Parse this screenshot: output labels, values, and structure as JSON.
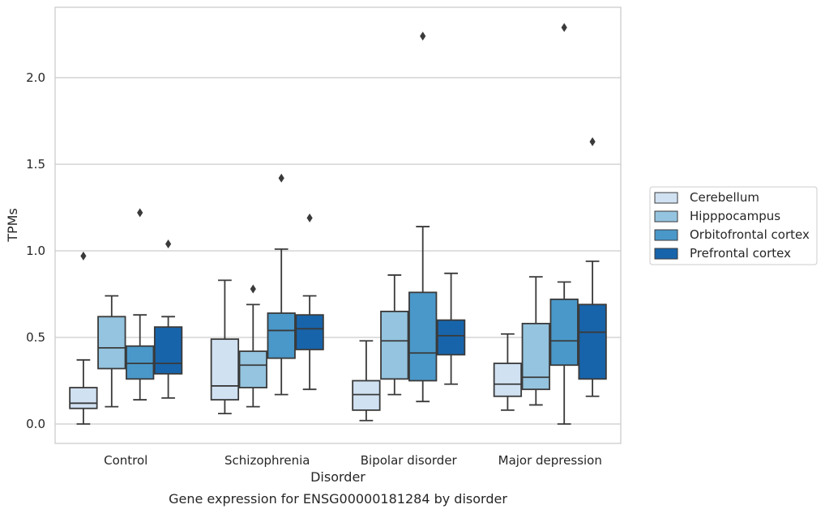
{
  "chart_data": {
    "type": "boxplot",
    "title": "",
    "caption": "Gene expression for ENSG00000181284 by disorder",
    "xlabel": "Disorder",
    "ylabel": "TPMs",
    "ylim": [
      -0.11,
      2.42
    ],
    "yticks": [
      "0.0",
      "0.5",
      "1.0",
      "1.5",
      "2.0"
    ],
    "grid": true,
    "legend_position": "right",
    "categories": [
      "Control",
      "Schizophrenia",
      "Bipolar disorder",
      "Major depression"
    ],
    "series": [
      {
        "name": "Cerebellum",
        "color": "#d0e1f2",
        "boxes": [
          {
            "whislo": 0.0,
            "q1": 0.09,
            "med": 0.12,
            "q3": 0.21,
            "whishi": 0.37,
            "fliers": [
              0.97
            ]
          },
          {
            "whislo": 0.06,
            "q1": 0.14,
            "med": 0.22,
            "q3": 0.49,
            "whishi": 0.83,
            "fliers": []
          },
          {
            "whislo": 0.02,
            "q1": 0.08,
            "med": 0.17,
            "q3": 0.25,
            "whishi": 0.48,
            "fliers": []
          },
          {
            "whislo": 0.08,
            "q1": 0.16,
            "med": 0.23,
            "q3": 0.35,
            "whishi": 0.52,
            "fliers": []
          }
        ]
      },
      {
        "name": "Hipppocampus",
        "color": "#94c4df",
        "boxes": [
          {
            "whislo": 0.1,
            "q1": 0.32,
            "med": 0.44,
            "q3": 0.62,
            "whishi": 0.74,
            "fliers": []
          },
          {
            "whislo": 0.1,
            "q1": 0.21,
            "med": 0.34,
            "q3": 0.42,
            "whishi": 0.69,
            "fliers": [
              0.78
            ]
          },
          {
            "whislo": 0.17,
            "q1": 0.26,
            "med": 0.48,
            "q3": 0.65,
            "whishi": 0.86,
            "fliers": []
          },
          {
            "whislo": 0.11,
            "q1": 0.2,
            "med": 0.27,
            "q3": 0.58,
            "whishi": 0.85,
            "fliers": []
          }
        ]
      },
      {
        "name": "Orbitofrontal cortex",
        "color": "#4a98c9",
        "boxes": [
          {
            "whislo": 0.14,
            "q1": 0.26,
            "med": 0.35,
            "q3": 0.45,
            "whishi": 0.63,
            "fliers": [
              1.22
            ]
          },
          {
            "whislo": 0.17,
            "q1": 0.38,
            "med": 0.54,
            "q3": 0.64,
            "whishi": 1.01,
            "fliers": [
              1.42
            ]
          },
          {
            "whislo": 0.13,
            "q1": 0.25,
            "med": 0.41,
            "q3": 0.76,
            "whishi": 1.14,
            "fliers": [
              2.24
            ]
          },
          {
            "whislo": 0.0,
            "q1": 0.34,
            "med": 0.48,
            "q3": 0.72,
            "whishi": 0.82,
            "fliers": [
              2.29
            ]
          }
        ]
      },
      {
        "name": "Prefrontal cortex",
        "color": "#1764ab",
        "boxes": [
          {
            "whislo": 0.15,
            "q1": 0.29,
            "med": 0.35,
            "q3": 0.56,
            "whishi": 0.62,
            "fliers": [
              1.04
            ]
          },
          {
            "whislo": 0.2,
            "q1": 0.43,
            "med": 0.55,
            "q3": 0.63,
            "whishi": 0.74,
            "fliers": [
              1.19
            ]
          },
          {
            "whislo": 0.23,
            "q1": 0.4,
            "med": 0.51,
            "q3": 0.6,
            "whishi": 0.87,
            "fliers": []
          },
          {
            "whislo": 0.16,
            "q1": 0.26,
            "med": 0.53,
            "q3": 0.69,
            "whishi": 0.94,
            "fliers": [
              1.63
            ]
          }
        ]
      }
    ]
  }
}
